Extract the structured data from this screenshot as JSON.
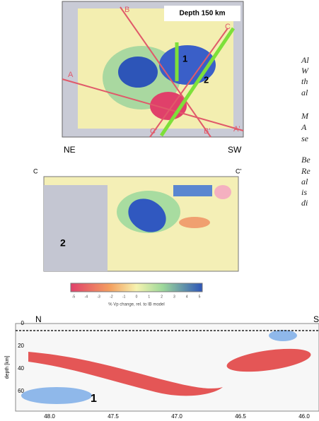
{
  "map": {
    "title": "Depth 150 km",
    "line_labels": [
      "A",
      "B",
      "C",
      "A'",
      "B'",
      "C'"
    ],
    "region_labels": [
      "1",
      "2"
    ]
  },
  "section": {
    "left": "NE",
    "right": "SW",
    "start": "C",
    "end": "C'",
    "region_label": "2"
  },
  "colorbar": {
    "ticks": [
      "-5",
      "-4",
      "-3",
      "-2",
      "-1",
      "0",
      "1",
      "2",
      "3",
      "4",
      "5"
    ],
    "caption": "% Vp change, rel. to IB model"
  },
  "profile": {
    "left": "N",
    "right": "S",
    "y_label": "depth [km]",
    "y_ticks": [
      "0",
      "20",
      "40",
      "60"
    ],
    "x_ticks": [
      "48.0",
      "47.5",
      "47.0",
      "46.5",
      "46.0"
    ],
    "region_label": "1"
  },
  "side_text": [
    "Al",
    "W",
    "th",
    "al",
    "M",
    "A",
    "se",
    "Be",
    "Re",
    "al",
    "is",
    "di"
  ]
}
